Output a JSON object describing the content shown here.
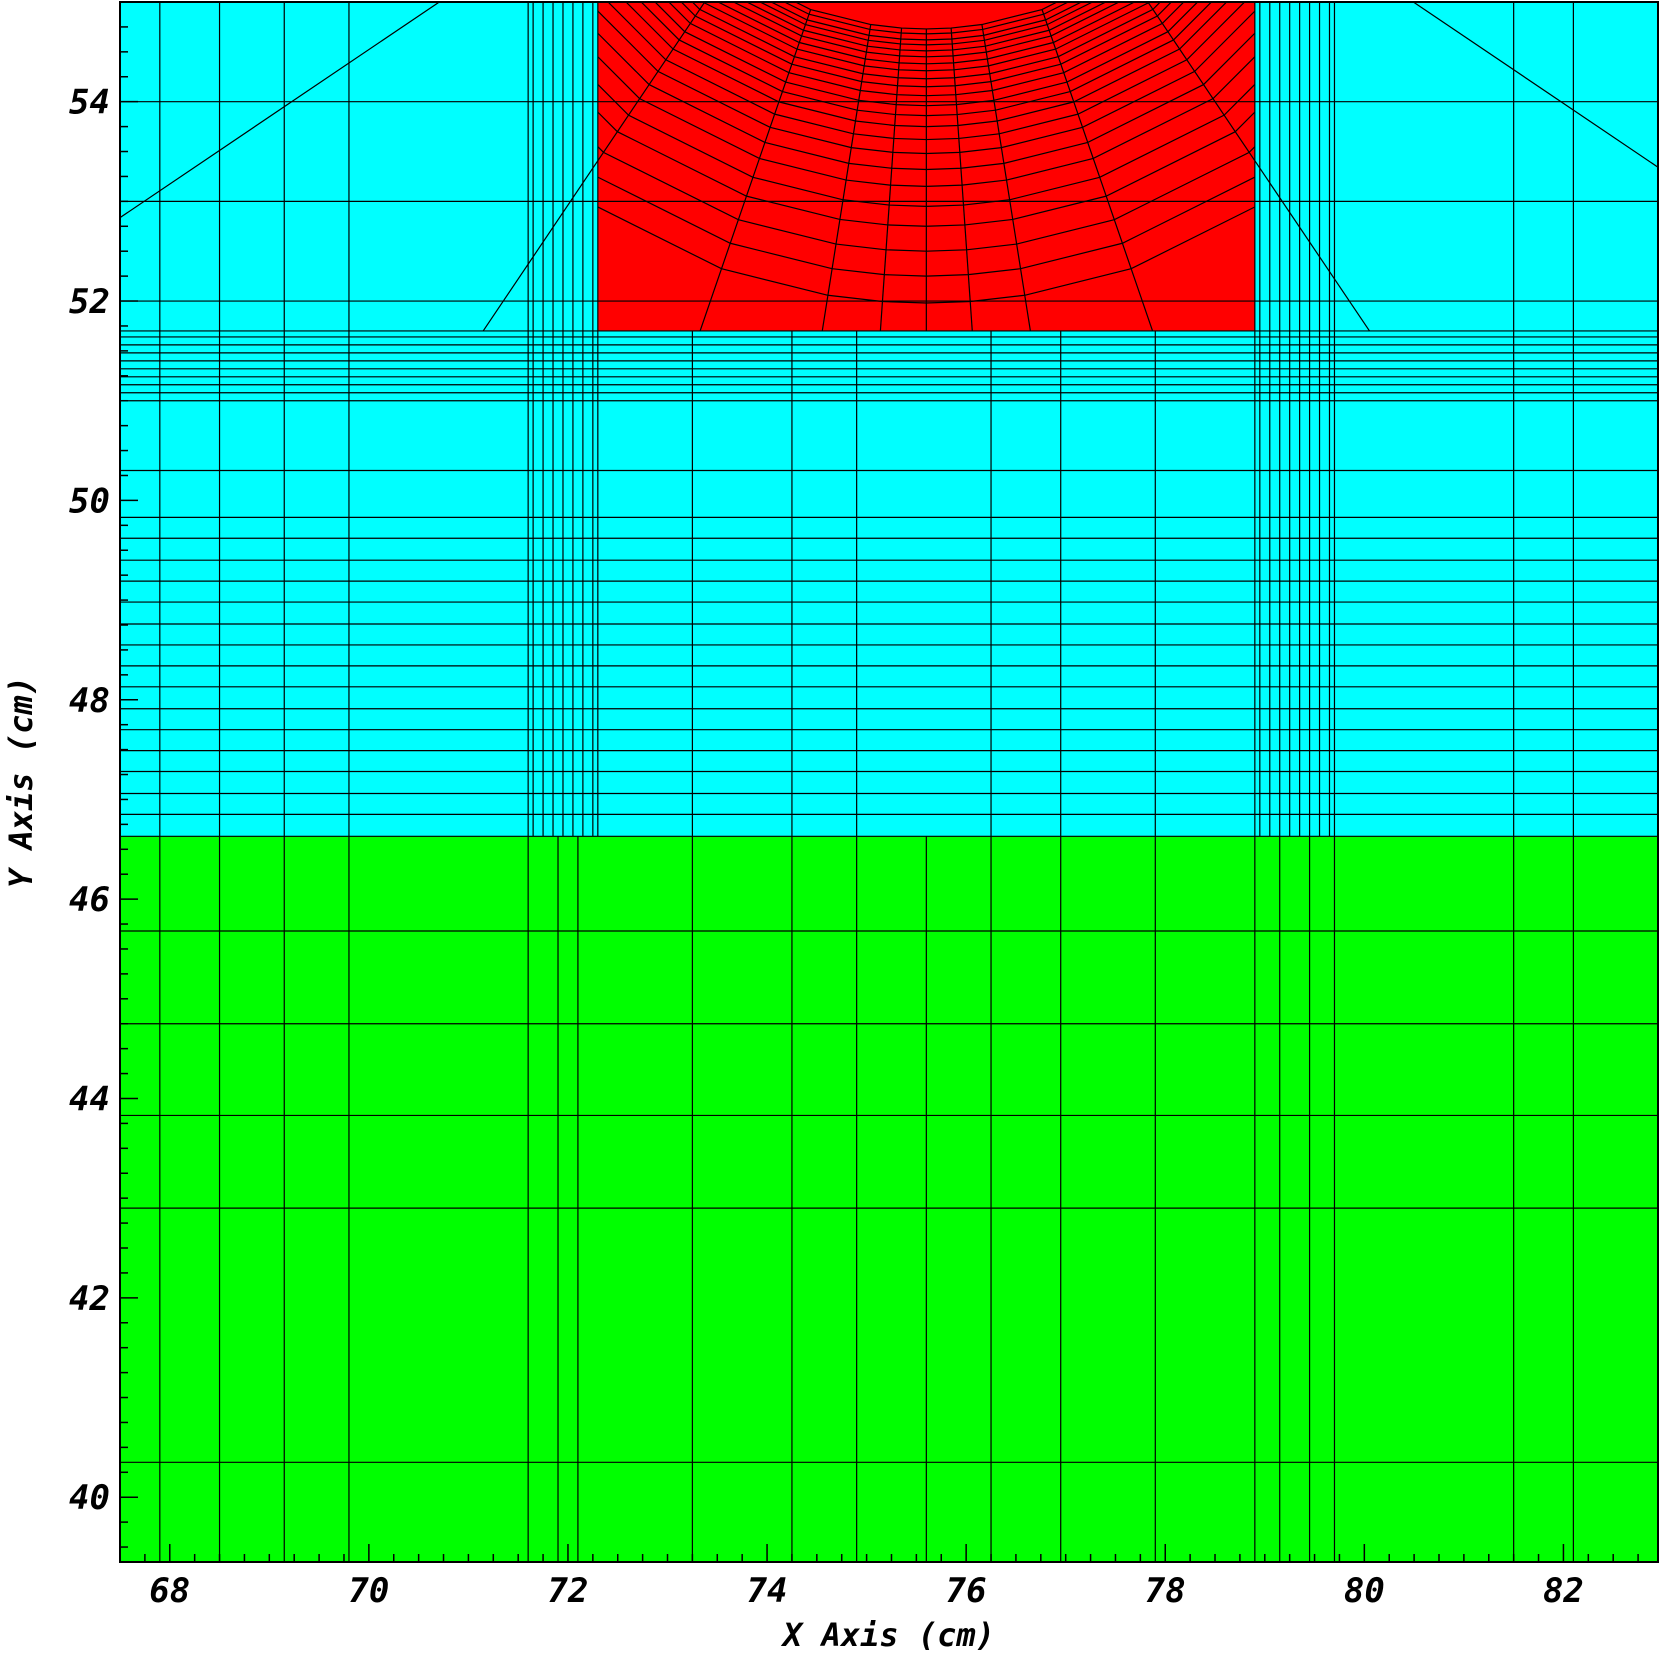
{
  "chart_data": {
    "type": "mesh",
    "xlabel": "X Axis (cm)",
    "ylabel": "Y Axis (cm)",
    "xlim": [
      67.5,
      82.95
    ],
    "ylim": [
      39.35,
      55.0
    ],
    "x_ticks": [
      68,
      70,
      72,
      74,
      76,
      78,
      80,
      82
    ],
    "y_ticks": [
      40,
      42,
      44,
      46,
      48,
      50,
      52,
      54
    ],
    "x_minor_step": 0.25,
    "y_minor_step": 0.25,
    "colors": {
      "material_lower": "#00ff00",
      "material_upper": "#00ffff",
      "material_source": "#ff0000",
      "mesh_lines": "#000000"
    },
    "regions": [
      {
        "material": "material_lower",
        "x": [
          67.5,
          82.95
        ],
        "y": [
          39.35,
          46.63
        ]
      },
      {
        "material": "material_upper",
        "x": [
          67.5,
          82.95
        ],
        "y": [
          46.63,
          55.0
        ]
      },
      {
        "material": "material_source",
        "x": [
          72.3,
          78.9
        ],
        "y": [
          51.7,
          55.0
        ]
      }
    ],
    "mesh_x_full": [
      67.9,
      68.5,
      69.15,
      69.8,
      71.6,
      71.9,
      72.1,
      73.25,
      74.25,
      74.9,
      75.6,
      76.25,
      76.95,
      77.9,
      78.9,
      79.15,
      79.45,
      79.7,
      81.5,
      82.1
    ],
    "mesh_x_upper": [
      67.9,
      68.5,
      69.15,
      69.8,
      71.6,
      71.65,
      71.75,
      71.85,
      71.95,
      72.05,
      72.15,
      72.25,
      72.3,
      78.9,
      78.95,
      79.05,
      79.15,
      79.25,
      79.35,
      79.45,
      79.55,
      79.65,
      79.7,
      81.5,
      82.1
    ],
    "mesh_x_middle": [
      73.25,
      74.25,
      74.9,
      76.25,
      76.95,
      77.9
    ],
    "mesh_y_lower": [
      40.35,
      42.9,
      43.83,
      44.75,
      45.68
    ],
    "mesh_y_upper": [
      46.85,
      47.06,
      47.28,
      47.49,
      47.7,
      47.91,
      48.13,
      48.34,
      48.55,
      48.76,
      48.98,
      49.19,
      49.4,
      49.62,
      49.83,
      50.3,
      51.0,
      51.08,
      51.16,
      51.24,
      51.32,
      51.4,
      51.48,
      51.56,
      51.64,
      51.7,
      52.0,
      53.0,
      54.0
    ],
    "mesh_y_source_edges": [
      52.0,
      53.0,
      54.0
    ],
    "source_mesh": {
      "center": [
        75.6,
        58.3
      ],
      "arc_radii": [
        6.32,
        6.05,
        5.8,
        5.55,
        5.35,
        5.15,
        4.98,
        4.82,
        4.68,
        4.55,
        4.44,
        4.34,
        4.24,
        4.15,
        4.07,
        3.99,
        3.92,
        3.85,
        3.79,
        3.73,
        3.68,
        3.62,
        3.57
      ],
      "arc_half_angle_deg": 68,
      "spoke_angles_deg": [
        -56,
        -34,
        -19,
        -9,
        -4,
        0,
        4,
        9,
        19,
        34,
        56
      ],
      "spoke_end_y": 51.7
    }
  }
}
